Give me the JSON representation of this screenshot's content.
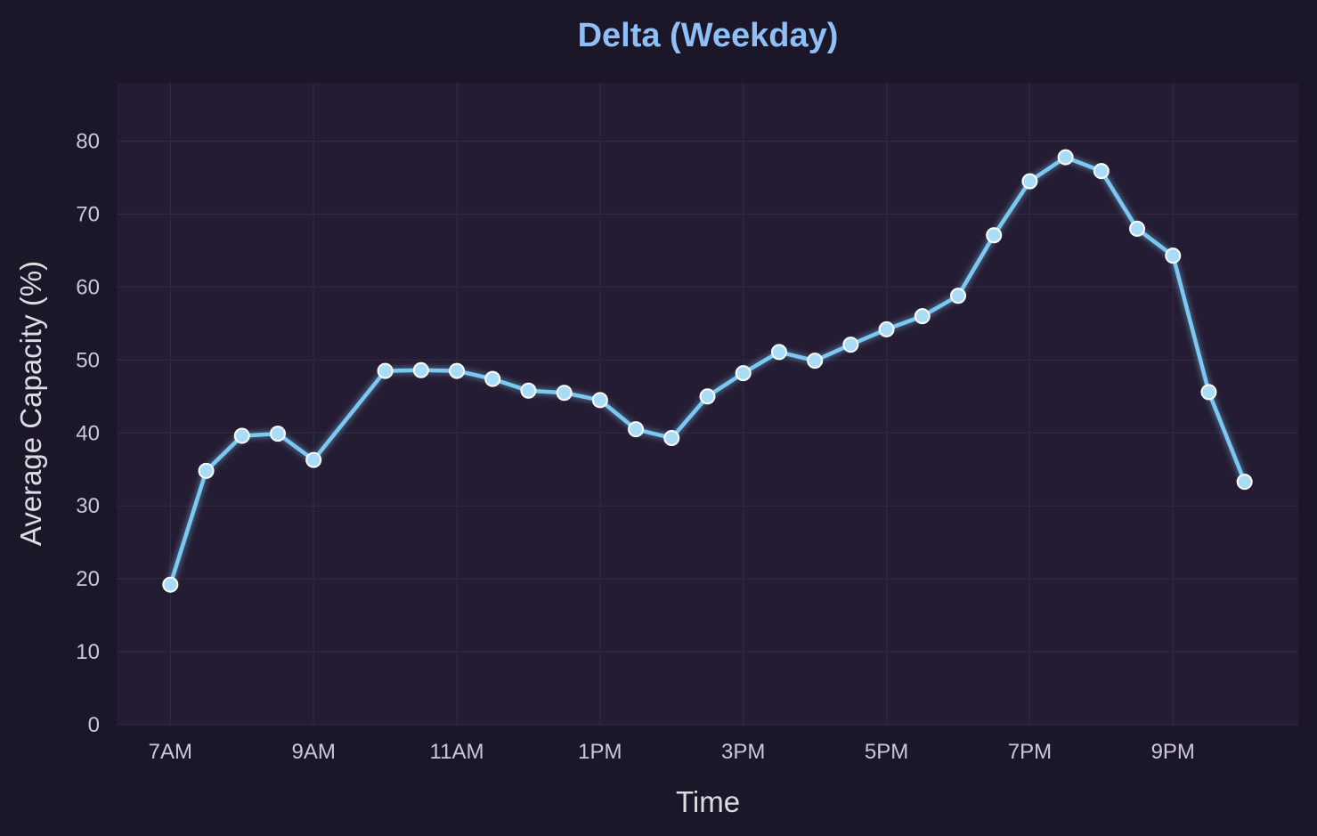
{
  "chart_data": {
    "type": "line",
    "title": "Delta (Weekday)",
    "xlabel": "Time",
    "ylabel": "Average Capacity (%)",
    "ylim": [
      0,
      88
    ],
    "xlim": [
      6.25,
      22.75
    ],
    "grid": true,
    "x_ticks": [
      {
        "value": 7,
        "label": "7AM"
      },
      {
        "value": 9,
        "label": "9AM"
      },
      {
        "value": 11,
        "label": "11AM"
      },
      {
        "value": 13,
        "label": "1PM"
      },
      {
        "value": 15,
        "label": "3PM"
      },
      {
        "value": 17,
        "label": "5PM"
      },
      {
        "value": 19,
        "label": "7PM"
      },
      {
        "value": 21,
        "label": "9PM"
      }
    ],
    "y_ticks": [
      0,
      10,
      20,
      30,
      40,
      50,
      60,
      70,
      80
    ],
    "series": [
      {
        "x": [
          7,
          7.5,
          8,
          8.5,
          9,
          10,
          10.5,
          11,
          11.5,
          12,
          12.5,
          13,
          13.5,
          14,
          14.5,
          15,
          15.5,
          16,
          16.5,
          17,
          17.5,
          18,
          18.5,
          19,
          19.5,
          20,
          20.5,
          21,
          21.5,
          22
        ],
        "values": [
          19.2,
          34.8,
          39.6,
          39.9,
          36.3,
          48.5,
          48.6,
          48.5,
          47.4,
          45.8,
          45.5,
          44.5,
          40.5,
          39.3,
          45.0,
          48.2,
          51.1,
          49.9,
          52.1,
          54.2,
          56.0,
          58.8,
          67.1,
          74.5,
          77.8,
          75.9,
          68.0,
          64.3,
          45.6,
          33.3
        ]
      }
    ],
    "colors": {
      "background": "#1b1728",
      "plot_background": "#241c33",
      "grid": "#2f2a40",
      "line": "#7cc8f2",
      "marker_fill": "#a8dcf8",
      "marker_edge": "#ffffff",
      "title": "#8fbff7"
    }
  }
}
